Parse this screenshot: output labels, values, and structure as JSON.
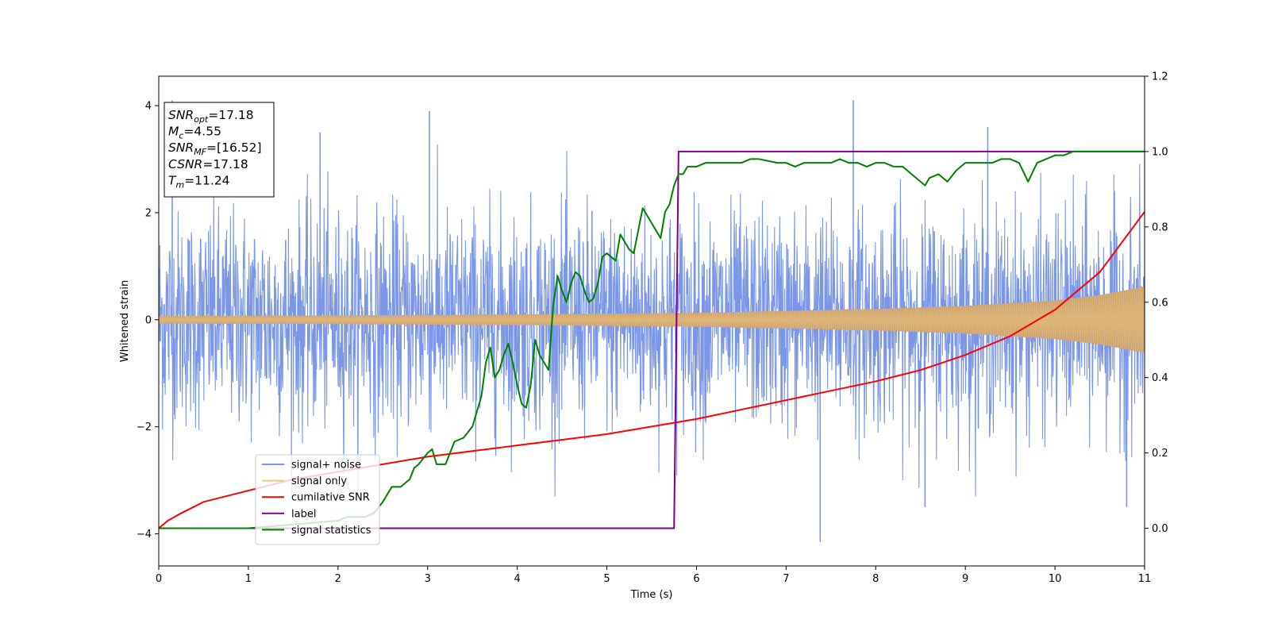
{
  "chart_data": {
    "type": "line",
    "xlabel": "Time (s)",
    "ylabel": "Whitened strain",
    "xlim": [
      0,
      11
    ],
    "ylim_left": [
      -4.6,
      4.55
    ],
    "ylim_right": [
      -0.1,
      1.2
    ],
    "xticks": [
      0,
      1,
      2,
      3,
      4,
      5,
      6,
      7,
      8,
      9,
      10,
      11
    ],
    "yticks_left": [
      -4,
      -2,
      0,
      2,
      4
    ],
    "yticks_right": [
      0.0,
      0.2,
      0.4,
      0.6,
      0.8,
      1.0,
      1.2
    ],
    "grid": false,
    "legend_position": "lower-left",
    "info_box": {
      "position": "top-left",
      "lines": [
        {
          "var": "SNR",
          "sub": "opt",
          "value": "=17.18"
        },
        {
          "var": "M",
          "sub": "c",
          "value": "=4.55"
        },
        {
          "var": "SNR",
          "sub": "MF",
          "value": "=[16.52]"
        },
        {
          "var": "CSNR",
          "sub": "",
          "value": "=17.18"
        },
        {
          "var": "T",
          "sub": "m",
          "value": "=11.24"
        }
      ]
    },
    "series": [
      {
        "name": "signal+ noise",
        "axis": "left",
        "color": "#7b96e8",
        "kind": "noisy-band",
        "noise_sigma": 1.0,
        "spike_extremes": [
          [
            0.15,
            4.1
          ],
          [
            1.8,
            3.5
          ],
          [
            3.02,
            3.9
          ],
          [
            7.38,
            -4.15
          ],
          [
            7.75,
            4.1
          ],
          [
            8.55,
            -3.5
          ],
          [
            9.25,
            3.6
          ],
          [
            10.8,
            -3.5
          ]
        ]
      },
      {
        "name": "signal only",
        "axis": "left",
        "color": "#f5c77e",
        "kind": "chirp-envelope",
        "envelope": {
          "x": [
            0,
            2,
            4,
            6,
            8,
            9,
            10,
            10.5,
            11
          ],
          "y": [
            0.07,
            0.08,
            0.1,
            0.13,
            0.2,
            0.26,
            0.36,
            0.46,
            0.62
          ]
        }
      },
      {
        "name": "cumilative SNR",
        "axis": "right",
        "color": "#ff0000",
        "x": [
          0,
          0.1,
          0.25,
          0.5,
          1,
          1.5,
          2,
          3,
          4,
          5,
          6,
          7,
          8,
          8.5,
          9,
          9.5,
          10,
          10.5,
          11
        ],
        "y": [
          0.0,
          0.02,
          0.04,
          0.07,
          0.1,
          0.13,
          0.15,
          0.19,
          0.22,
          0.25,
          0.29,
          0.34,
          0.39,
          0.42,
          0.46,
          0.51,
          0.58,
          0.68,
          0.84
        ]
      },
      {
        "name": "label",
        "axis": "right",
        "color": "#800080",
        "x": [
          0,
          5.75,
          5.8,
          11
        ],
        "y": [
          0.0,
          0.0,
          1.0,
          1.0
        ]
      },
      {
        "name": "signal statistics",
        "axis": "right",
        "color": "#008000",
        "x": [
          0,
          1,
          1.5,
          2,
          2.1,
          2.3,
          2.4,
          2.5,
          2.6,
          2.7,
          2.8,
          2.85,
          2.9,
          3,
          3.05,
          3.1,
          3.2,
          3.3,
          3.4,
          3.5,
          3.6,
          3.65,
          3.7,
          3.75,
          3.8,
          3.85,
          3.9,
          3.95,
          4.0,
          4.05,
          4.1,
          4.15,
          4.2,
          4.25,
          4.3,
          4.35,
          4.4,
          4.45,
          4.5,
          4.55,
          4.6,
          4.65,
          4.7,
          4.75,
          4.8,
          4.85,
          4.9,
          4.95,
          5.0,
          5.05,
          5.1,
          5.15,
          5.2,
          5.25,
          5.3,
          5.35,
          5.4,
          5.5,
          5.55,
          5.6,
          5.65,
          5.7,
          5.75,
          5.8,
          5.85,
          5.9,
          6.0,
          6.1,
          6.2,
          6.3,
          6.5,
          6.6,
          6.7,
          6.9,
          7.0,
          7.1,
          7.2,
          7.3,
          7.4,
          7.5,
          7.6,
          7.7,
          7.8,
          7.9,
          8.0,
          8.1,
          8.2,
          8.3,
          8.4,
          8.5,
          8.55,
          8.6,
          8.7,
          8.8,
          8.9,
          9.0,
          9.1,
          9.2,
          9.3,
          9.4,
          9.5,
          9.6,
          9.7,
          9.8,
          9.9,
          10.0,
          10.1,
          10.2,
          10.4,
          10.6,
          11
        ],
        "y": [
          0.0,
          0.0,
          0.01,
          0.02,
          0.03,
          0.03,
          0.04,
          0.07,
          0.11,
          0.11,
          0.13,
          0.16,
          0.17,
          0.2,
          0.21,
          0.17,
          0.17,
          0.23,
          0.24,
          0.27,
          0.35,
          0.44,
          0.48,
          0.4,
          0.42,
          0.46,
          0.49,
          0.44,
          0.38,
          0.33,
          0.32,
          0.38,
          0.5,
          0.46,
          0.44,
          0.42,
          0.59,
          0.67,
          0.63,
          0.6,
          0.65,
          0.68,
          0.67,
          0.63,
          0.6,
          0.61,
          0.65,
          0.72,
          0.73,
          0.72,
          0.71,
          0.78,
          0.76,
          0.74,
          0.73,
          0.79,
          0.85,
          0.81,
          0.79,
          0.77,
          0.84,
          0.86,
          0.91,
          0.94,
          0.94,
          0.96,
          0.96,
          0.97,
          0.97,
          0.97,
          0.97,
          0.98,
          0.98,
          0.97,
          0.97,
          0.96,
          0.97,
          0.97,
          0.97,
          0.97,
          0.98,
          0.97,
          0.97,
          0.96,
          0.97,
          0.97,
          0.96,
          0.96,
          0.94,
          0.92,
          0.91,
          0.93,
          0.94,
          0.92,
          0.95,
          0.97,
          0.97,
          0.97,
          0.97,
          0.98,
          0.98,
          0.97,
          0.92,
          0.97,
          0.98,
          0.99,
          0.99,
          1.0,
          1.0,
          1.0,
          1.0
        ]
      }
    ]
  }
}
